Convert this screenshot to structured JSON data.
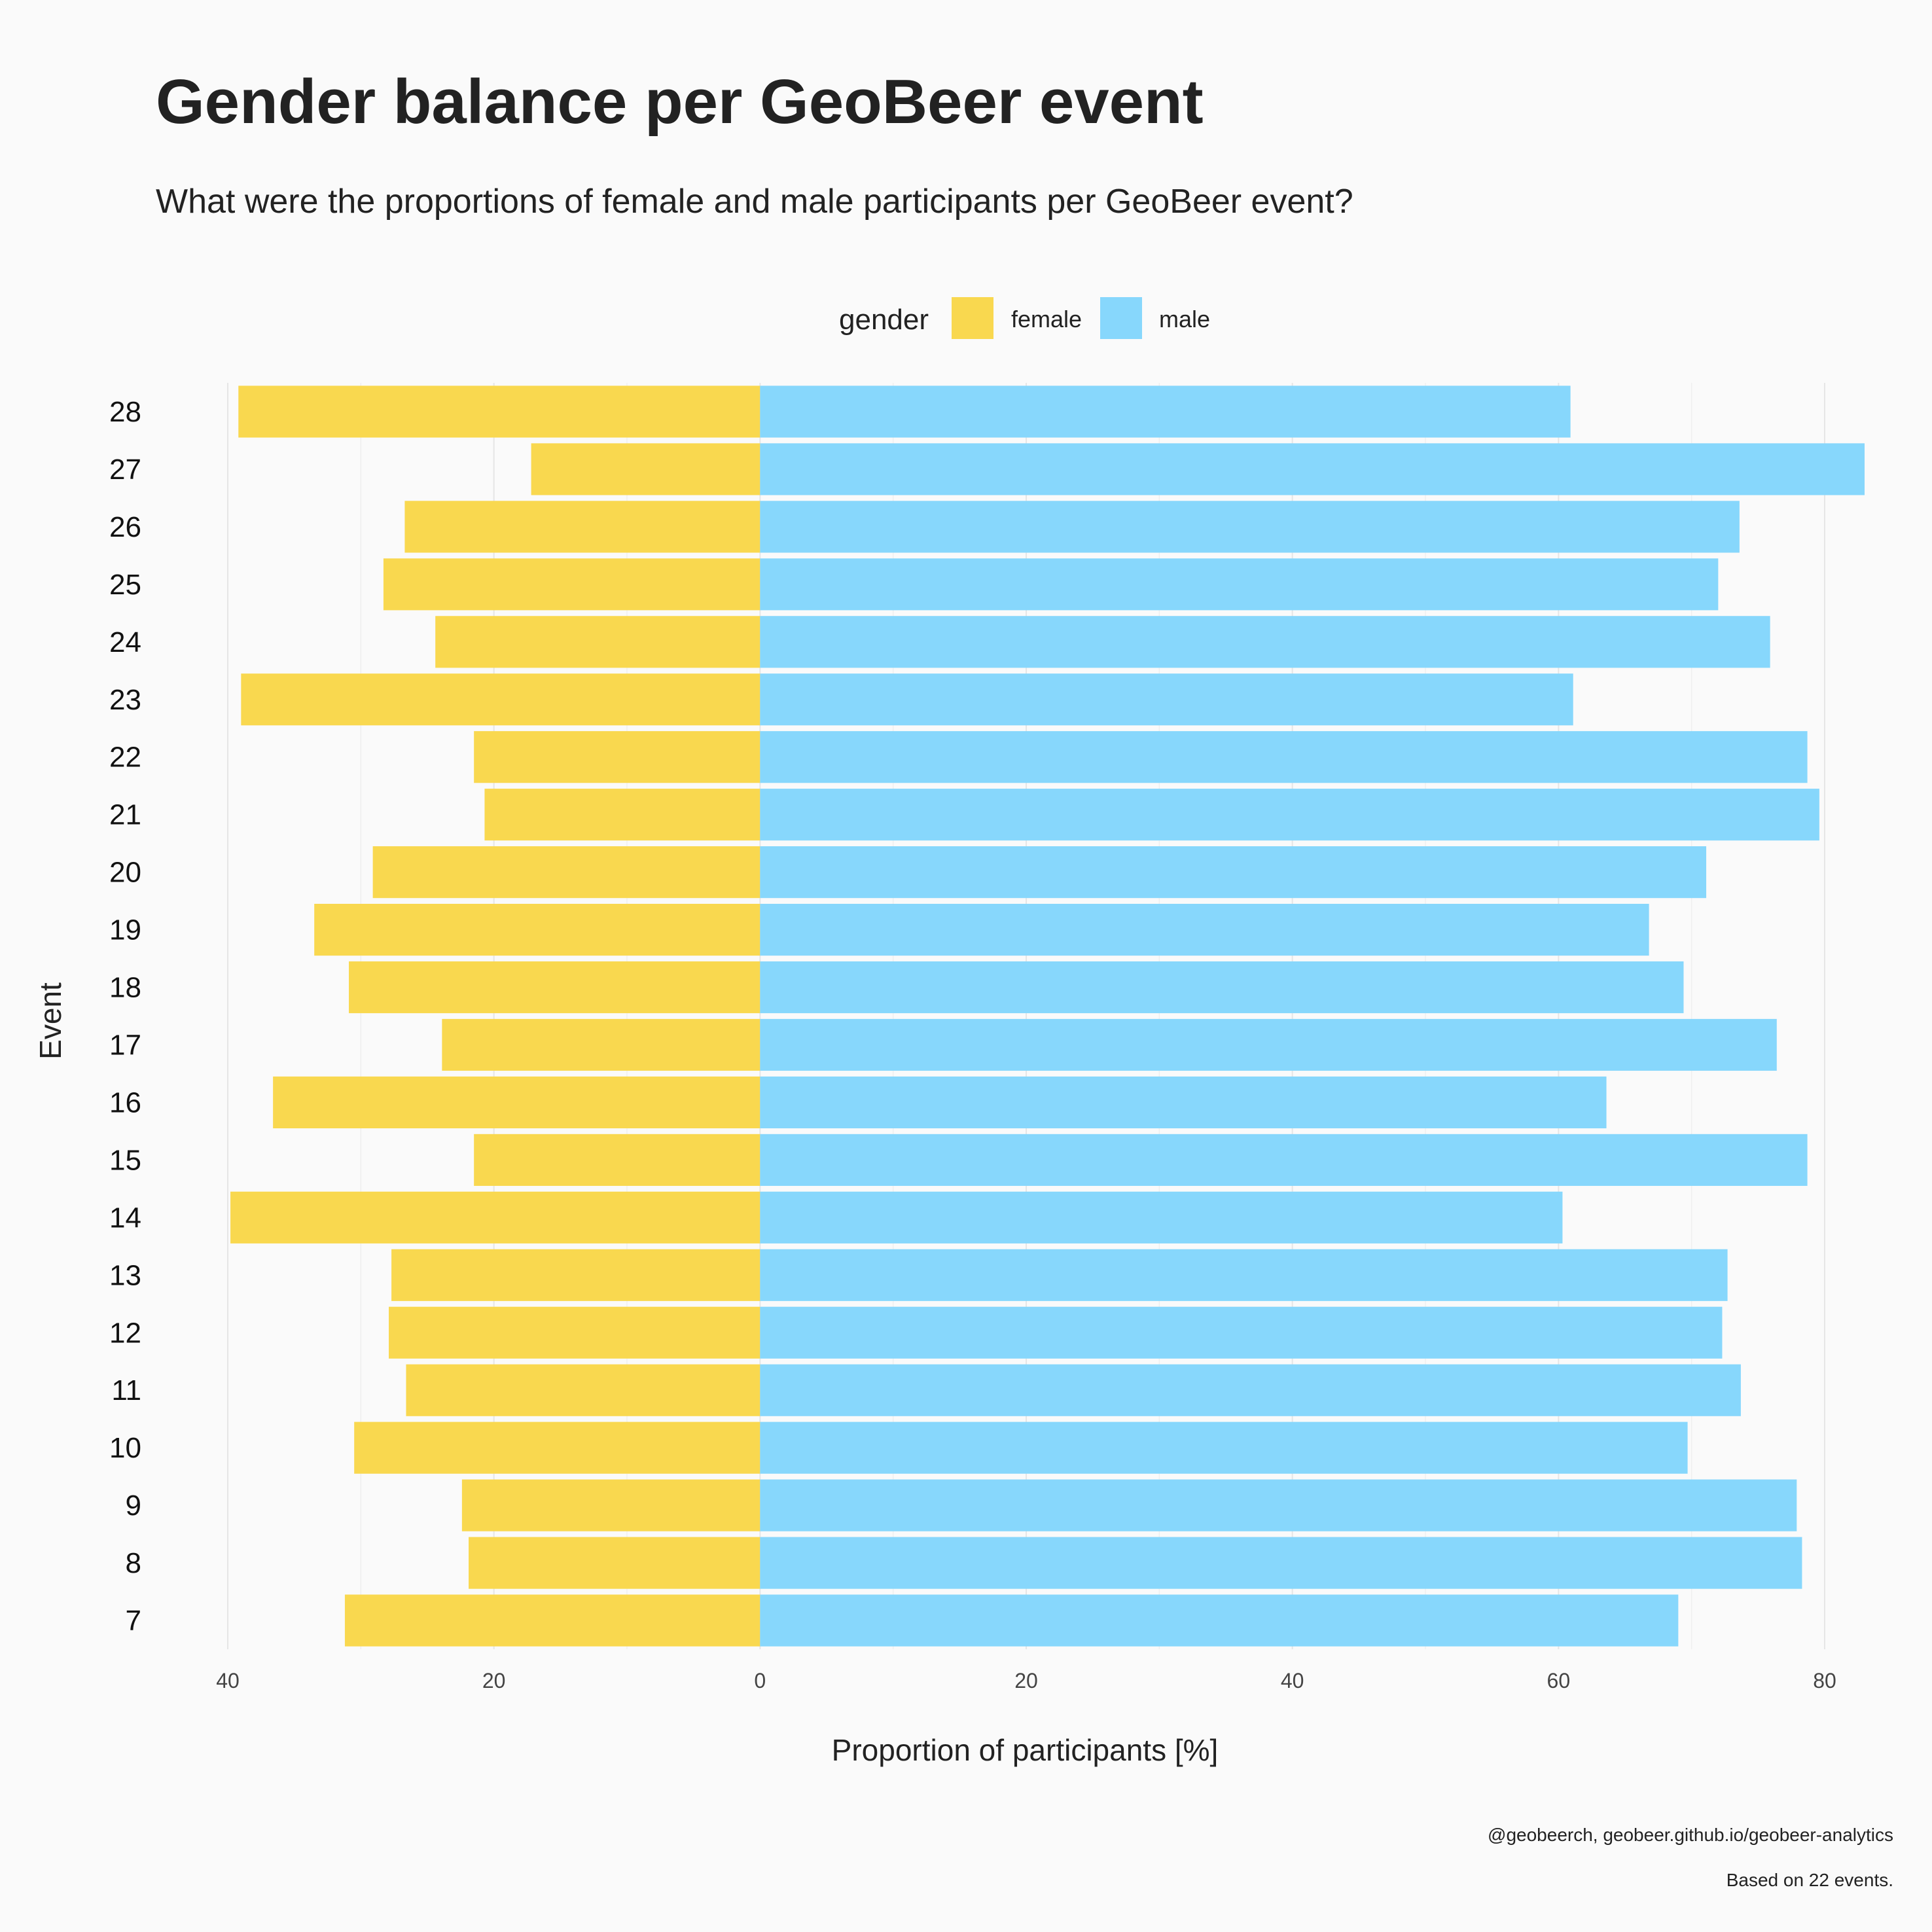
{
  "chart_data": {
    "type": "bar",
    "orientation": "horizontal",
    "layout": "diverging",
    "title": "Gender balance per GeoBeer event",
    "subtitle": "What were the proportions of female and male participants per GeoBeer event?",
    "xlabel": "Proportion of participants [%]",
    "ylabel": "Event",
    "xlim": [
      -40,
      80
    ],
    "x_ticks": [
      -40,
      -20,
      0,
      20,
      40,
      60,
      80
    ],
    "x_tick_labels": [
      "40",
      "20",
      "0",
      "20",
      "40",
      "60",
      "80"
    ],
    "legend": {
      "title": "gender",
      "position": "top",
      "items": [
        {
          "label": "female",
          "color": "#f9d84f"
        },
        {
          "label": "male",
          "color": "#87d7fc"
        }
      ]
    },
    "categories": [
      "28",
      "27",
      "26",
      "25",
      "24",
      "23",
      "22",
      "21",
      "20",
      "19",
      "18",
      "17",
      "16",
      "15",
      "14",
      "13",
      "12",
      "11",
      "10",
      "9",
      "8",
      "7"
    ],
    "series": [
      {
        "name": "female",
        "color": "#f9d84f",
        "values": [
          39.2,
          17.2,
          26.7,
          28.3,
          24.4,
          39.0,
          21.5,
          20.7,
          29.1,
          33.5,
          30.9,
          23.9,
          36.6,
          21.5,
          39.8,
          27.7,
          27.9,
          26.6,
          30.5,
          22.4,
          21.9,
          31.2
        ]
      },
      {
        "name": "male",
        "color": "#87d7fc",
        "values": [
          60.9,
          83.0,
          73.6,
          72.0,
          75.9,
          61.1,
          78.7,
          79.6,
          71.1,
          66.8,
          69.4,
          76.4,
          63.6,
          78.7,
          60.3,
          72.7,
          72.3,
          73.7,
          69.7,
          77.9,
          78.3,
          69.0
        ]
      }
    ],
    "grid": true,
    "captions": [
      "@geobeerch, geobeer.github.io/geobeer-analytics",
      "Based on 22 events."
    ]
  }
}
